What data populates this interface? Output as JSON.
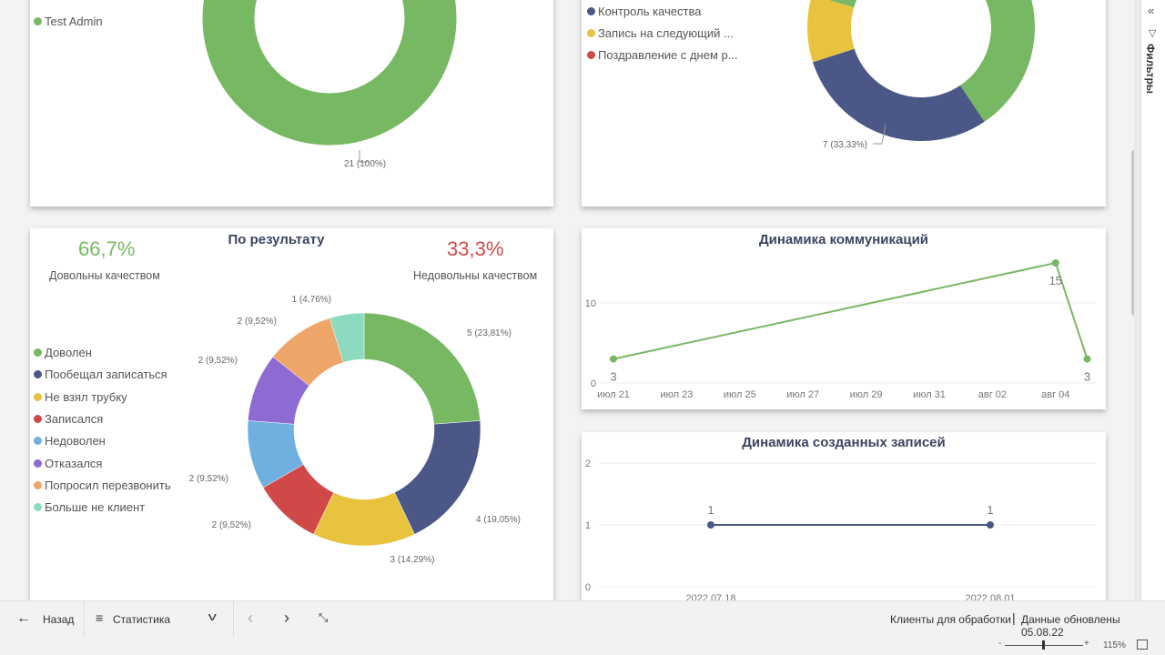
{
  "colors": {
    "green": "#77b862",
    "blue": "#4a5787",
    "yellow": "#e9c33e",
    "red": "#d04949",
    "lightblue": "#6fb0e0",
    "purple": "#8e6bd3",
    "orange": "#eda56a",
    "teal": "#8ddbbe"
  },
  "card_top_left": {
    "legend": [
      "Test Admin"
    ],
    "label": "21 (100%)"
  },
  "card_top_right": {
    "legend": [
      "Контроль качества",
      "Запись на следующий ...",
      "Поздравление с днем р..."
    ],
    "label": "7 (33,33%)"
  },
  "result_card": {
    "title": "По результату",
    "kpi_good": {
      "value": "66,7%",
      "label": "Довольны качеством"
    },
    "kpi_bad": {
      "value": "33,3%",
      "label": "Недовольны качеством"
    }
  },
  "line1": {
    "title": "Динамика коммуникаций"
  },
  "line2": {
    "title": "Динамика созданных записей"
  },
  "chart_data": [
    {
      "type": "pie",
      "title": "По результату",
      "categories": [
        "Доволен",
        "Пообещал записаться",
        "Не взял трубку",
        "Записался",
        "Недоволен",
        "Отказался",
        "Попросил перезвонить",
        "Больше не клиент"
      ],
      "values": [
        5,
        4,
        3,
        2,
        2,
        2,
        2,
        1
      ],
      "labels": [
        "5 (23,81%)",
        "4 (19,05%)",
        "3 (14,29%)",
        "2 (9,52%)",
        "2 (9,52%)",
        "2 (9,52%)",
        "2 (9,52%)",
        "1 (4,76%)"
      ]
    },
    {
      "type": "line",
      "title": "Динамика коммуникаций",
      "x_ticks": [
        "июл 21",
        "июл 23",
        "июл 25",
        "июл 27",
        "июл 29",
        "июл 31",
        "авг 02",
        "авг 04"
      ],
      "points": [
        {
          "x": 0,
          "y": 3
        },
        {
          "x": 14,
          "y": 15
        },
        {
          "x": 15,
          "y": 3
        }
      ],
      "y_ticks": [
        "0",
        "10"
      ],
      "ylim": [
        0,
        15
      ]
    },
    {
      "type": "line",
      "title": "Динамика созданных записей",
      "x_ticks": [
        "2022.07.18",
        "2022.08.01"
      ],
      "points": [
        {
          "x": 0,
          "y": 1
        },
        {
          "x": 1,
          "y": 1
        }
      ],
      "y_ticks": [
        "0",
        "1",
        "2"
      ],
      "ylim": [
        0,
        2
      ]
    }
  ],
  "sidebar": {
    "filters": "Фильтры"
  },
  "footer": {
    "back": "Назад",
    "page": "Статистика",
    "status": "Клиенты для обработки",
    "updated": "Данные обновлены 05.08.22",
    "zoom": "115%"
  }
}
